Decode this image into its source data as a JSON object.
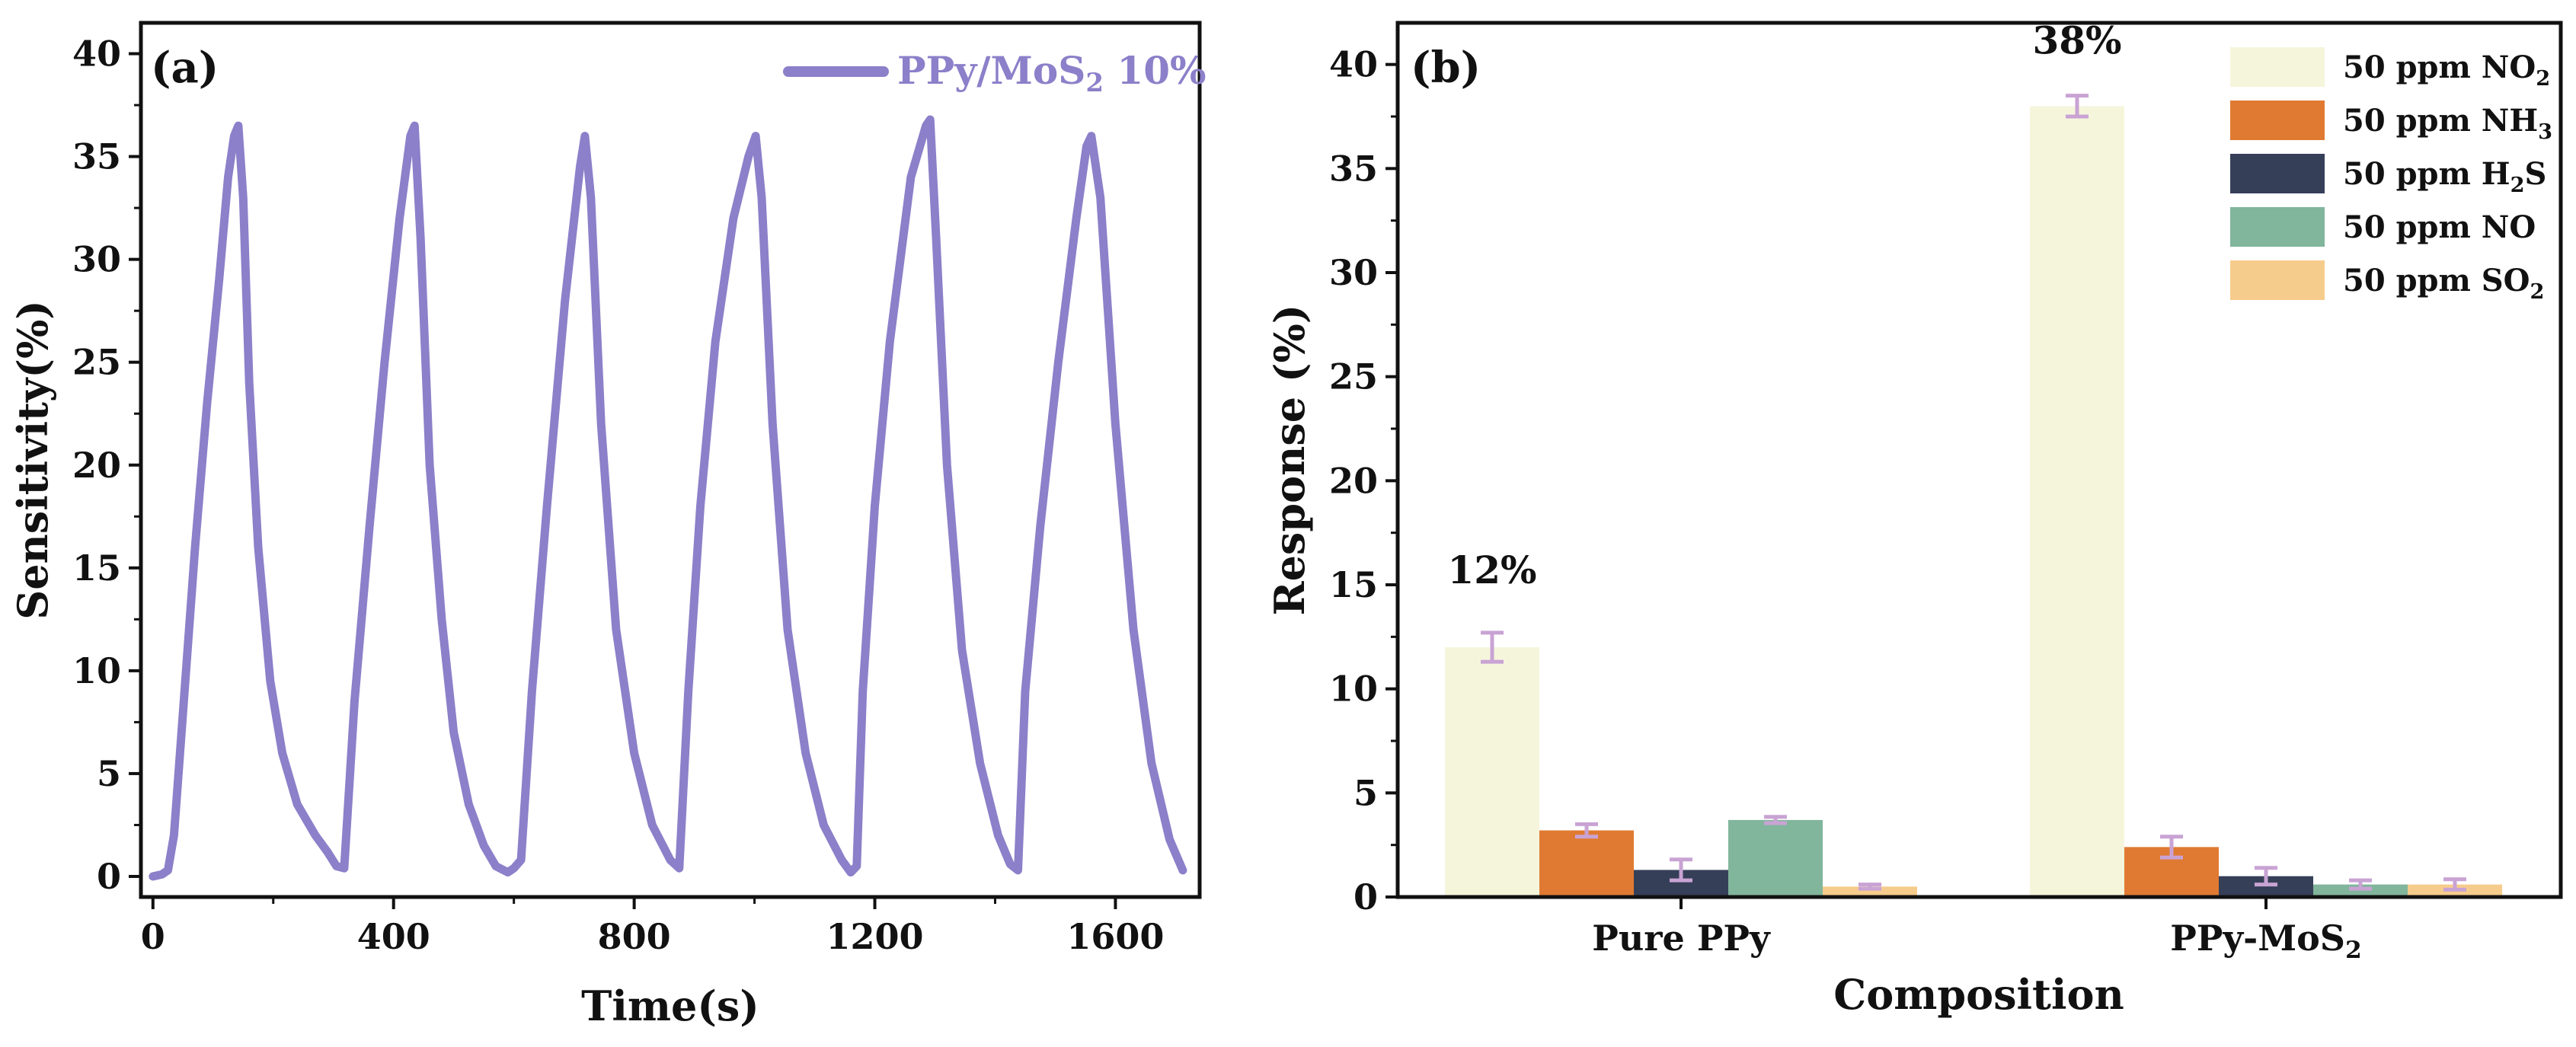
{
  "chart_data": [
    {
      "type": "line",
      "panel_label": "(a)",
      "xlabel": "Time(s)",
      "ylabel": "Sensitivity(%)",
      "xlim": [
        -20,
        1740
      ],
      "ylim": [
        -1,
        41.5
      ],
      "xticks": [
        0,
        400,
        800,
        1200,
        1600
      ],
      "yticks": [
        0,
        5,
        10,
        15,
        20,
        25,
        30,
        35,
        40
      ],
      "legend": "top-right",
      "color": "#8b80c9",
      "series": [
        {
          "name": "PPy/MoS2 10%",
          "name_base": "PPy/MoS",
          "name_sub": "2",
          "name_tail": " 10%",
          "x": [
            0,
            15,
            25,
            35,
            50,
            70,
            90,
            110,
            125,
            135,
            142,
            150,
            160,
            175,
            195,
            215,
            240,
            270,
            290,
            305,
            318,
            335,
            360,
            385,
            410,
            428,
            435,
            445,
            460,
            480,
            500,
            525,
            550,
            570,
            590,
            600,
            612,
            630,
            655,
            685,
            710,
            718,
            728,
            745,
            770,
            800,
            830,
            860,
            875,
            890,
            910,
            935,
            965,
            990,
            1002,
            1012,
            1030,
            1055,
            1085,
            1115,
            1145,
            1160,
            1170,
            1180,
            1200,
            1225,
            1260,
            1285,
            1292,
            1302,
            1320,
            1345,
            1375,
            1405,
            1425,
            1438,
            1450,
            1475,
            1505,
            1535,
            1552,
            1560,
            1575,
            1600,
            1630,
            1660,
            1690,
            1712
          ],
          "y": [
            0.0,
            0.1,
            0.3,
            2.0,
            8.0,
            16.0,
            23.0,
            29.0,
            34.0,
            36.0,
            36.5,
            33.0,
            24.0,
            16.0,
            9.5,
            6.0,
            3.5,
            2.0,
            1.2,
            0.5,
            0.4,
            8.5,
            17.0,
            25.0,
            32.0,
            36.0,
            36.5,
            31.0,
            20.0,
            12.5,
            7.0,
            3.5,
            1.5,
            0.5,
            0.2,
            0.4,
            0.8,
            9.0,
            18.0,
            28.0,
            34.5,
            36.0,
            33.0,
            22.0,
            12.0,
            6.0,
            2.5,
            0.8,
            0.4,
            9.0,
            18.0,
            26.0,
            32.0,
            35.0,
            36.0,
            33.0,
            22.0,
            12.0,
            6.0,
            2.5,
            0.8,
            0.2,
            0.5,
            9.0,
            18.0,
            26.0,
            34.0,
            36.5,
            36.8,
            31.0,
            20.0,
            11.0,
            5.5,
            2.0,
            0.6,
            0.3,
            9.0,
            17.0,
            25.0,
            32.0,
            35.5,
            36.0,
            33.0,
            22.0,
            12.0,
            5.5,
            1.8,
            0.3
          ]
        }
      ]
    },
    {
      "type": "bar",
      "panel_label": "(b)",
      "xlabel": "Composition",
      "ylabel": "Response (%)",
      "ylim": [
        0,
        42
      ],
      "yticks": [
        0,
        5,
        10,
        15,
        20,
        25,
        30,
        35,
        40
      ],
      "legend": "top-right",
      "categories": [
        "Pure PPy",
        "PPy-MoS2"
      ],
      "category_labels": [
        {
          "base": "Pure PPy",
          "sub": "",
          "tail": ""
        },
        {
          "base": "PPy-MoS",
          "sub": "2",
          "tail": ""
        }
      ],
      "series": [
        {
          "name": "50 ppm NO2",
          "label_base": "50 ppm NO",
          "label_sub": "2",
          "label_tail": "",
          "color": "#f5f5dc",
          "values": [
            12.0,
            38.0
          ],
          "errors": [
            0.7,
            0.5
          ]
        },
        {
          "name": "50 ppm NH3",
          "label_base": "50 ppm NH",
          "label_sub": "3",
          "label_tail": "",
          "color": "#e07a32",
          "values": [
            3.2,
            2.4
          ],
          "errors": [
            0.3,
            0.5
          ]
        },
        {
          "name": "50 ppm H2S",
          "label_base": "50 ppm H",
          "label_sub": "2",
          "label_tail": "S",
          "color": "#363f58",
          "values": [
            1.3,
            1.0
          ],
          "errors": [
            0.5,
            0.4
          ]
        },
        {
          "name": "50 ppm NO",
          "label_base": "50 ppm NO",
          "label_sub": "",
          "label_tail": "",
          "color": "#81b59c",
          "values": [
            3.7,
            0.6
          ],
          "errors": [
            0.15,
            0.2
          ]
        },
        {
          "name": "50 ppm SO2",
          "label_base": "50 ppm SO",
          "label_sub": "2",
          "label_tail": "",
          "color": "#f6cc8c",
          "values": [
            0.5,
            0.6
          ],
          "errors": [
            0.1,
            0.25
          ]
        }
      ],
      "error_bar_color": "#c9a3d4",
      "annotations": [
        {
          "text": "12%",
          "category": "Pure PPy"
        },
        {
          "text": "38%",
          "category": "PPy-MoS2"
        }
      ]
    }
  ]
}
